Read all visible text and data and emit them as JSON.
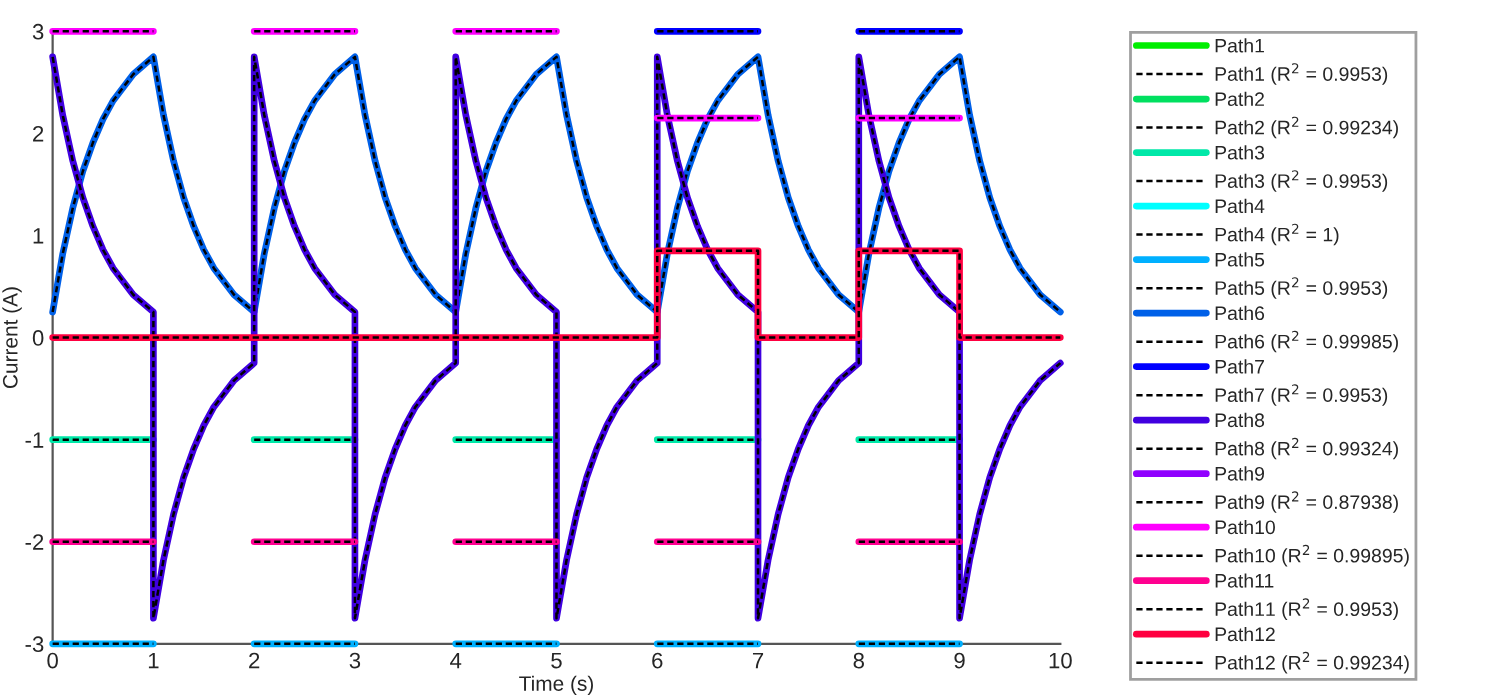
{
  "chart_data": {
    "type": "line",
    "xlabel": "Time (s)",
    "ylabel": "Current (A)",
    "xlim": [
      0,
      10
    ],
    "ylim": [
      -3,
      3
    ],
    "xticks": [
      0,
      1,
      2,
      3,
      4,
      5,
      6,
      7,
      8,
      9,
      10
    ],
    "yticks": [
      -3,
      -2,
      -1,
      0,
      1,
      2,
      3
    ],
    "grid": false,
    "legend": "right",
    "x": [
      0,
      1,
      1,
      2,
      2,
      3,
      3,
      4,
      4,
      5,
      5,
      6,
      6,
      7,
      7,
      8,
      8,
      9,
      9,
      10
    ],
    "series": [
      {
        "name": "Path1",
        "color": "#00ee00",
        "line_style": "solid",
        "values": [
          null,
          null,
          null,
          null,
          null,
          null,
          null,
          null,
          null,
          null,
          null,
          null,
          null,
          null,
          null,
          null,
          null,
          null,
          null,
          null
        ]
      },
      {
        "name": "Path1 (R$^{2}$ = 0.9953)",
        "color": "#000000",
        "line_style": "dashed",
        "values": [
          null,
          null,
          null,
          null,
          null,
          null,
          null,
          null,
          null,
          null,
          null,
          null,
          null,
          null,
          null,
          null,
          null,
          null,
          null,
          null
        ]
      },
      {
        "name": "Path2",
        "color": "#00e060",
        "line_style": "solid",
        "values": [
          null,
          null,
          null,
          null,
          null,
          null,
          null,
          null,
          null,
          null,
          null,
          null,
          null,
          null,
          null,
          null,
          null,
          null,
          null,
          null
        ]
      },
      {
        "name": "Path2 (R$^{2}$ = 0.99234)",
        "color": "#000000",
        "line_style": "dashed",
        "values": [
          null,
          null,
          null,
          null,
          null,
          null,
          null,
          null,
          null,
          null,
          null,
          null,
          null,
          null,
          null,
          null,
          null,
          null,
          null,
          null
        ]
      },
      {
        "name": "Path3",
        "color": "#00e8a8",
        "line_style": "solid",
        "values": [
          -1,
          -1,
          null,
          null,
          -1,
          -1,
          null,
          null,
          -1,
          -1,
          null,
          null,
          -1,
          -1,
          null,
          null,
          -1,
          -1,
          null,
          null
        ]
      },
      {
        "name": "Path3 (R$^{2}$ = 0.9953)",
        "color": "#000000",
        "line_style": "dashed",
        "values": [
          -1,
          -1,
          null,
          null,
          -1,
          -1,
          null,
          null,
          -1,
          -1,
          null,
          null,
          -1,
          -1,
          null,
          null,
          -1,
          -1,
          null,
          null
        ]
      },
      {
        "name": "Path4",
        "color": "#00ffff",
        "line_style": "solid",
        "values": [
          null,
          null,
          null,
          null,
          null,
          null,
          null,
          null,
          null,
          null,
          null,
          null,
          null,
          null,
          null,
          null,
          null,
          null,
          null,
          null
        ]
      },
      {
        "name": "Path4 (R$^{2}$ = 1)",
        "color": "#000000",
        "line_style": "dashed",
        "values": [
          null,
          null,
          null,
          null,
          null,
          null,
          null,
          null,
          null,
          null,
          null,
          null,
          null,
          null,
          null,
          null,
          null,
          null,
          null,
          null
        ]
      },
      {
        "name": "Path5",
        "color": "#00b0ff",
        "line_style": "solid",
        "values": [
          -3,
          -3,
          null,
          null,
          -3,
          -3,
          null,
          null,
          -3,
          -3,
          null,
          null,
          -3,
          -3,
          null,
          null,
          -3,
          -3,
          null,
          null
        ]
      },
      {
        "name": "Path5 (R$^{2}$ = 0.9953)",
        "color": "#000000",
        "line_style": "dashed",
        "values": [
          -3,
          -3,
          null,
          null,
          -3,
          -3,
          null,
          null,
          -3,
          -3,
          null,
          null,
          -3,
          -3,
          null,
          null,
          -3,
          -3,
          null,
          null
        ]
      },
      {
        "name": "Path6",
        "color": "#0060e8",
        "line_style": "solid",
        "x": [
          0,
          0.1,
          0.2,
          0.3,
          0.4,
          0.5,
          0.6,
          0.8,
          1,
          1,
          1.1,
          1.2,
          1.3,
          1.4,
          1.5,
          1.6,
          1.8,
          2,
          2,
          2.1,
          2.2,
          2.3,
          2.4,
          2.5,
          2.6,
          2.8,
          3,
          3,
          3.1,
          3.2,
          3.3,
          3.4,
          3.5,
          3.6,
          3.8,
          4,
          4,
          4.1,
          4.2,
          4.3,
          4.4,
          4.5,
          4.6,
          4.8,
          5,
          5,
          5.1,
          5.2,
          5.3,
          5.4,
          5.5,
          5.6,
          5.8,
          6,
          6,
          6.1,
          6.2,
          6.3,
          6.4,
          6.5,
          6.6,
          6.8,
          7,
          7,
          7.1,
          7.2,
          7.3,
          7.4,
          7.5,
          7.6,
          7.8,
          8,
          8,
          8.1,
          8.2,
          8.3,
          8.4,
          8.5,
          8.6,
          8.8,
          9,
          9,
          9.1,
          9.2,
          9.3,
          9.4,
          9.5,
          9.6,
          9.8,
          10
        ],
        "values": [
          0.25,
          0.82,
          1.27,
          1.63,
          1.91,
          2.14,
          2.32,
          2.58,
          2.75,
          2.75,
          2.18,
          1.73,
          1.37,
          1.09,
          0.86,
          0.68,
          0.42,
          0.25,
          0.25,
          0.82,
          1.27,
          1.63,
          1.91,
          2.14,
          2.32,
          2.58,
          2.75,
          2.75,
          2.18,
          1.73,
          1.37,
          1.09,
          0.86,
          0.68,
          0.42,
          0.25,
          0.25,
          0.82,
          1.27,
          1.63,
          1.91,
          2.14,
          2.32,
          2.58,
          2.75,
          2.75,
          2.18,
          1.73,
          1.37,
          1.09,
          0.86,
          0.68,
          0.42,
          0.25,
          0.25,
          0.82,
          1.27,
          1.63,
          1.91,
          2.14,
          2.32,
          2.58,
          2.75,
          2.75,
          2.18,
          1.73,
          1.37,
          1.09,
          0.86,
          0.68,
          0.42,
          0.25,
          0.25,
          0.82,
          1.27,
          1.63,
          1.91,
          2.14,
          2.32,
          2.58,
          2.75,
          2.75,
          2.18,
          1.73,
          1.37,
          1.09,
          0.86,
          0.68,
          0.42,
          0.25
        ]
      },
      {
        "name": "Path6 (R$^{2}$ = 0.99985)",
        "color": "#000000",
        "line_style": "dashed",
        "x": [
          0,
          0.1,
          0.2,
          0.3,
          0.4,
          0.5,
          0.6,
          0.8,
          1,
          1,
          1.1,
          1.2,
          1.3,
          1.4,
          1.5,
          1.6,
          1.8,
          2,
          2,
          2.1,
          2.2,
          2.3,
          2.4,
          2.5,
          2.6,
          2.8,
          3,
          3,
          3.1,
          3.2,
          3.3,
          3.4,
          3.5,
          3.6,
          3.8,
          4,
          4,
          4.1,
          4.2,
          4.3,
          4.4,
          4.5,
          4.6,
          4.8,
          5,
          5,
          5.1,
          5.2,
          5.3,
          5.4,
          5.5,
          5.6,
          5.8,
          6,
          6,
          6.1,
          6.2,
          6.3,
          6.4,
          6.5,
          6.6,
          6.8,
          7,
          7,
          7.1,
          7.2,
          7.3,
          7.4,
          7.5,
          7.6,
          7.8,
          8,
          8,
          8.1,
          8.2,
          8.3,
          8.4,
          8.5,
          8.6,
          8.8,
          9,
          9,
          9.1,
          9.2,
          9.3,
          9.4,
          9.5,
          9.6,
          9.8,
          10
        ],
        "values": [
          0.25,
          0.82,
          1.27,
          1.63,
          1.91,
          2.14,
          2.32,
          2.58,
          2.75,
          2.75,
          2.18,
          1.73,
          1.37,
          1.09,
          0.86,
          0.68,
          0.42,
          0.25,
          0.25,
          0.82,
          1.27,
          1.63,
          1.91,
          2.14,
          2.32,
          2.58,
          2.75,
          2.75,
          2.18,
          1.73,
          1.37,
          1.09,
          0.86,
          0.68,
          0.42,
          0.25,
          0.25,
          0.82,
          1.27,
          1.63,
          1.91,
          2.14,
          2.32,
          2.58,
          2.75,
          2.75,
          2.18,
          1.73,
          1.37,
          1.09,
          0.86,
          0.68,
          0.42,
          0.25,
          0.25,
          0.82,
          1.27,
          1.63,
          1.91,
          2.14,
          2.32,
          2.58,
          2.75,
          2.75,
          2.18,
          1.73,
          1.37,
          1.09,
          0.86,
          0.68,
          0.42,
          0.25,
          0.25,
          0.82,
          1.27,
          1.63,
          1.91,
          2.14,
          2.32,
          2.58,
          2.75,
          2.75,
          2.18,
          1.73,
          1.37,
          1.09,
          0.86,
          0.68,
          0.42,
          0.25
        ]
      },
      {
        "name": "Path7",
        "color": "#0000ff",
        "line_style": "solid",
        "values": [
          null,
          null,
          null,
          null,
          null,
          null,
          null,
          null,
          null,
          null,
          null,
          null,
          3,
          3,
          null,
          null,
          3,
          3,
          null,
          null
        ]
      },
      {
        "name": "Path7 (R$^{2}$ = 0.9953)",
        "color": "#000000",
        "line_style": "dashed",
        "values": [
          null,
          null,
          null,
          null,
          null,
          null,
          null,
          null,
          null,
          null,
          null,
          null,
          3,
          3,
          null,
          null,
          3,
          3,
          null,
          null
        ]
      },
      {
        "name": "Path8",
        "color": "#4000e0",
        "line_style": "solid",
        "x": [
          0,
          0.1,
          0.2,
          0.3,
          0.4,
          0.5,
          0.6,
          0.8,
          1,
          1,
          1.1,
          1.2,
          1.3,
          1.4,
          1.5,
          1.6,
          1.8,
          2,
          2,
          2.1,
          2.2,
          2.3,
          2.4,
          2.5,
          2.6,
          2.8,
          3,
          3,
          3.1,
          3.2,
          3.3,
          3.4,
          3.5,
          3.6,
          3.8,
          4,
          4,
          4.1,
          4.2,
          4.3,
          4.4,
          4.5,
          4.6,
          4.8,
          5,
          5,
          5.1,
          5.2,
          5.3,
          5.4,
          5.5,
          5.6,
          5.8,
          6,
          6,
          6.1,
          6.2,
          6.3,
          6.4,
          6.5,
          6.6,
          6.8,
          7,
          7,
          7.1,
          7.2,
          7.3,
          7.4,
          7.5,
          7.6,
          7.8,
          8,
          8,
          8.1,
          8.2,
          8.3,
          8.4,
          8.5,
          8.6,
          8.8,
          9,
          9,
          9.1,
          9.2,
          9.3,
          9.4,
          9.5,
          9.6,
          9.8,
          10
        ],
        "values": [
          2.75,
          2.18,
          1.73,
          1.37,
          1.09,
          0.86,
          0.68,
          0.42,
          0.25,
          -2.75,
          -2.18,
          -1.73,
          -1.37,
          -1.09,
          -0.86,
          -0.68,
          -0.42,
          -0.25,
          2.75,
          2.18,
          1.73,
          1.37,
          1.09,
          0.86,
          0.68,
          0.42,
          0.25,
          -2.75,
          -2.18,
          -1.73,
          -1.37,
          -1.09,
          -0.86,
          -0.68,
          -0.42,
          -0.25,
          2.75,
          2.18,
          1.73,
          1.37,
          1.09,
          0.86,
          0.68,
          0.42,
          0.25,
          -2.75,
          -2.18,
          -1.73,
          -1.37,
          -1.09,
          -0.86,
          -0.68,
          -0.42,
          -0.25,
          2.75,
          2.18,
          1.73,
          1.37,
          1.09,
          0.86,
          0.68,
          0.42,
          0.25,
          -2.75,
          -2.18,
          -1.73,
          -1.37,
          -1.09,
          -0.86,
          -0.68,
          -0.42,
          -0.25,
          2.75,
          2.18,
          1.73,
          1.37,
          1.09,
          0.86,
          0.68,
          0.42,
          0.25,
          -2.75,
          -2.18,
          -1.73,
          -1.37,
          -1.09,
          -0.86,
          -0.68,
          -0.42,
          -0.25
        ]
      },
      {
        "name": "Path8 (R$^{2}$ = 0.99324)",
        "color": "#000000",
        "line_style": "dashed",
        "x": [
          0,
          0.1,
          0.2,
          0.3,
          0.4,
          0.5,
          0.6,
          0.8,
          1,
          1,
          1.1,
          1.2,
          1.3,
          1.4,
          1.5,
          1.6,
          1.8,
          2,
          2,
          2.1,
          2.2,
          2.3,
          2.4,
          2.5,
          2.6,
          2.8,
          3,
          3,
          3.1,
          3.2,
          3.3,
          3.4,
          3.5,
          3.6,
          3.8,
          4,
          4,
          4.1,
          4.2,
          4.3,
          4.4,
          4.5,
          4.6,
          4.8,
          5,
          5,
          5.1,
          5.2,
          5.3,
          5.4,
          5.5,
          5.6,
          5.8,
          6,
          6,
          6.1,
          6.2,
          6.3,
          6.4,
          6.5,
          6.6,
          6.8,
          7,
          7,
          7.1,
          7.2,
          7.3,
          7.4,
          7.5,
          7.6,
          7.8,
          8,
          8,
          8.1,
          8.2,
          8.3,
          8.4,
          8.5,
          8.6,
          8.8,
          9,
          9,
          9.1,
          9.2,
          9.3,
          9.4,
          9.5,
          9.6,
          9.8,
          10
        ],
        "values": [
          2.75,
          2.18,
          1.73,
          1.37,
          1.09,
          0.86,
          0.68,
          0.42,
          0.25,
          -2.75,
          -2.18,
          -1.73,
          -1.37,
          -1.09,
          -0.86,
          -0.68,
          -0.42,
          -0.25,
          2.75,
          2.18,
          1.73,
          1.37,
          1.09,
          0.86,
          0.68,
          0.42,
          0.25,
          -2.75,
          -2.18,
          -1.73,
          -1.37,
          -1.09,
          -0.86,
          -0.68,
          -0.42,
          -0.25,
          2.75,
          2.18,
          1.73,
          1.37,
          1.09,
          0.86,
          0.68,
          0.42,
          0.25,
          -2.75,
          -2.18,
          -1.73,
          -1.37,
          -1.09,
          -0.86,
          -0.68,
          -0.42,
          -0.25,
          2.75,
          2.18,
          1.73,
          1.37,
          1.09,
          0.86,
          0.68,
          0.42,
          0.25,
          -2.75,
          -2.18,
          -1.73,
          -1.37,
          -1.09,
          -0.86,
          -0.68,
          -0.42,
          -0.25,
          2.75,
          2.18,
          1.73,
          1.37,
          1.09,
          0.86,
          0.68,
          0.42,
          0.25,
          -2.75,
          -2.18,
          -1.73,
          -1.37,
          -1.09,
          -0.86,
          -0.68,
          -0.42,
          -0.25
        ]
      },
      {
        "name": "Path9",
        "color": "#9000ff",
        "line_style": "solid",
        "values": [
          null,
          null,
          null,
          null,
          null,
          null,
          null,
          null,
          null,
          null,
          null,
          null,
          null,
          null,
          null,
          null,
          null,
          null,
          null,
          null
        ]
      },
      {
        "name": "Path9 (R$^{2}$ = 0.87938)",
        "color": "#000000",
        "line_style": "dashed",
        "values": [
          null,
          null,
          null,
          null,
          null,
          null,
          null,
          null,
          null,
          null,
          null,
          null,
          null,
          null,
          null,
          null,
          null,
          null,
          null,
          null
        ]
      },
      {
        "name": "Path10",
        "color": "#ff00ff",
        "line_style": "solid",
        "values": [
          3,
          3,
          null,
          null,
          3,
          3,
          null,
          null,
          3,
          3,
          null,
          null,
          2.15,
          2.15,
          null,
          null,
          2.15,
          2.15,
          null,
          null
        ]
      },
      {
        "name": "Path10 (R$^{2}$ = 0.99895)",
        "color": "#000000",
        "line_style": "dashed",
        "values": [
          3,
          3,
          null,
          null,
          3,
          3,
          null,
          null,
          3,
          3,
          null,
          null,
          2.15,
          2.15,
          null,
          null,
          2.15,
          2.15,
          null,
          null
        ]
      },
      {
        "name": "Path11",
        "color": "#ff0090",
        "line_style": "solid",
        "values": [
          -2,
          -2,
          null,
          null,
          -2,
          -2,
          null,
          null,
          -2,
          -2,
          null,
          null,
          -2,
          -2,
          null,
          null,
          -2,
          -2,
          null,
          null
        ]
      },
      {
        "name": "Path11 (R$^{2}$ = 0.9953)",
        "color": "#000000",
        "line_style": "dashed",
        "values": [
          -2,
          -2,
          null,
          null,
          -2,
          -2,
          null,
          null,
          -2,
          -2,
          null,
          null,
          -2,
          -2,
          null,
          null,
          -2,
          -2,
          null,
          null
        ]
      },
      {
        "name": "Path12",
        "color": "#ff0040",
        "line_style": "solid",
        "values": [
          0,
          0,
          0,
          0,
          0,
          0,
          0,
          0,
          0,
          0,
          0,
          0,
          0.85,
          0.85,
          0,
          0,
          0.85,
          0.85,
          0,
          0
        ]
      },
      {
        "name": "Path12 (R$^{2}$ = 0.99234)",
        "color": "#000000",
        "line_style": "dashed",
        "values": [
          0,
          0,
          0,
          0,
          0,
          0,
          0,
          0,
          0,
          0,
          0,
          0,
          0.85,
          0.85,
          0,
          0,
          0.85,
          0.85,
          0,
          0
        ]
      }
    ]
  }
}
